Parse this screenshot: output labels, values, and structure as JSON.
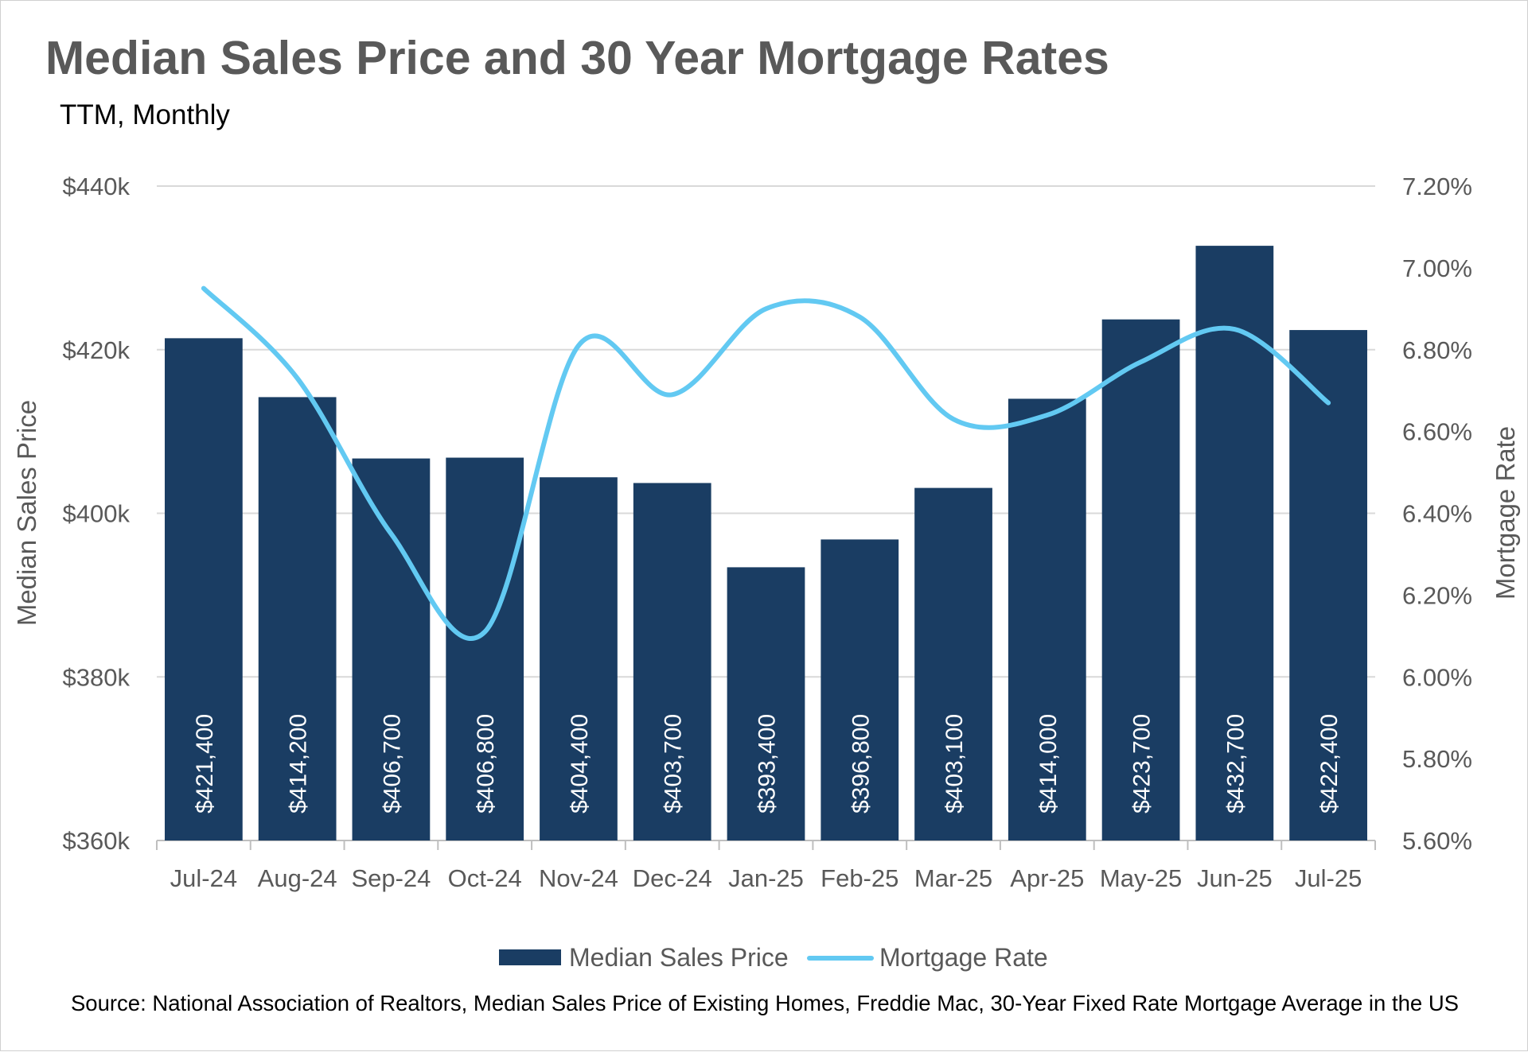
{
  "chart_data": {
    "type": "bar+line",
    "title": "Median Sales Price and 30 Year Mortgage Rates",
    "subtitle": "TTM, Monthly",
    "categories": [
      "Jul-24",
      "Aug-24",
      "Sep-24",
      "Oct-24",
      "Nov-24",
      "Dec-24",
      "Jan-25",
      "Feb-25",
      "Mar-25",
      "Apr-25",
      "May-25",
      "Jun-25",
      "Jul-25"
    ],
    "series": [
      {
        "name": "Median Sales Price",
        "type": "bar",
        "axis": "left",
        "color": "#1a3d63",
        "values": [
          421400,
          414200,
          406700,
          406800,
          404400,
          403700,
          393400,
          396800,
          403100,
          414000,
          423700,
          432700,
          422400
        ],
        "data_labels": [
          "$421,400",
          "$414,200",
          "$406,700",
          "$406,800",
          "$404,400",
          "$403,700",
          "$393,400",
          "$396,800",
          "$403,100",
          "$414,000",
          "$423,700",
          "$432,700",
          "$422,400"
        ]
      },
      {
        "name": "Mortgage Rate",
        "type": "line",
        "smooth": true,
        "axis": "right",
        "color": "#62c9f2",
        "values": [
          6.95,
          6.73,
          6.35,
          6.11,
          6.81,
          6.69,
          6.9,
          6.88,
          6.63,
          6.64,
          6.77,
          6.85,
          6.67
        ]
      }
    ],
    "y_left": {
      "label": "Median Sales Price",
      "range": [
        360000,
        440000
      ],
      "ticks": [
        "$360k",
        "$380k",
        "$400k",
        "$420k",
        "$440k"
      ],
      "tick_values": [
        360000,
        380000,
        400000,
        420000,
        440000
      ]
    },
    "y_right": {
      "label": "Mortgage Rate",
      "range": [
        5.6,
        7.2
      ],
      "ticks": [
        "5.60%",
        "5.80%",
        "6.00%",
        "6.20%",
        "6.40%",
        "6.60%",
        "6.80%",
        "7.00%",
        "7.20%"
      ],
      "tick_values": [
        5.6,
        5.8,
        6.0,
        6.2,
        6.4,
        6.6,
        6.8,
        7.0,
        7.2
      ]
    },
    "grid": true,
    "legend": "bottom",
    "source": "Source: National Association of Realtors, Median Sales Price of Existing Homes, Freddie Mac, 30-Year Fixed Rate Mortgage Average in the US"
  }
}
